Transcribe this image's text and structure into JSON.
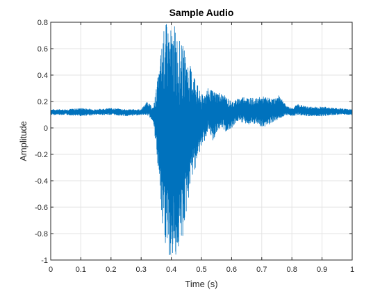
{
  "chart_data": {
    "type": "line",
    "title": "Sample Audio",
    "xlabel": "Time (s)",
    "ylabel": "Amplitude",
    "xlim": [
      0,
      1
    ],
    "ylim": [
      -1,
      0.8
    ],
    "grid": true,
    "x_ticks": [
      "0",
      "0.1",
      "0.2",
      "0.3",
      "0.4",
      "0.5",
      "0.6",
      "0.7",
      "0.8",
      "0.9",
      "1"
    ],
    "y_ticks": [
      "-1",
      "-0.8",
      "-0.6",
      "-0.4",
      "-0.2",
      "0",
      "0.2",
      "0.4",
      "0.6",
      "0.8"
    ],
    "series": [
      {
        "color": "#0072BD",
        "x": [
          0,
          0.05,
          0.1,
          0.15,
          0.2,
          0.25,
          0.3,
          0.32,
          0.34,
          0.36,
          0.37,
          0.38,
          0.39,
          0.4,
          0.41,
          0.42,
          0.43,
          0.44,
          0.45,
          0.46,
          0.47,
          0.48,
          0.49,
          0.5,
          0.52,
          0.54,
          0.56,
          0.58,
          0.6,
          0.62,
          0.64,
          0.66,
          0.68,
          0.7,
          0.72,
          0.74,
          0.76,
          0.78,
          0.8,
          0.82,
          0.85,
          0.9,
          0.95,
          1
        ],
        "y_max": [
          0.14,
          0.14,
          0.15,
          0.14,
          0.15,
          0.14,
          0.14,
          0.2,
          0.15,
          0.45,
          0.68,
          0.8,
          0.78,
          0.75,
          0.78,
          0.72,
          0.65,
          0.62,
          0.55,
          0.48,
          0.45,
          0.4,
          0.3,
          0.25,
          0.3,
          0.28,
          0.27,
          0.24,
          0.2,
          0.22,
          0.24,
          0.23,
          0.22,
          0.24,
          0.23,
          0.22,
          0.25,
          0.17,
          0.15,
          0.18,
          0.16,
          0.16,
          0.15,
          0.14
        ],
        "y_min": [
          0.1,
          0.1,
          0.09,
          0.1,
          0.1,
          0.09,
          0.1,
          0.1,
          0.05,
          -0.4,
          -0.8,
          -0.9,
          -1.0,
          -1.0,
          -0.98,
          -0.96,
          -0.9,
          -0.82,
          -0.65,
          -0.5,
          -0.38,
          -0.3,
          -0.22,
          -0.15,
          -0.05,
          -0.1,
          0.0,
          -0.03,
          0.0,
          0.05,
          0.04,
          0.02,
          0.03,
          0.0,
          0.02,
          0.05,
          0.07,
          0.1,
          0.09,
          0.1,
          0.09,
          0.09,
          0.1,
          0.1
        ]
      }
    ]
  }
}
